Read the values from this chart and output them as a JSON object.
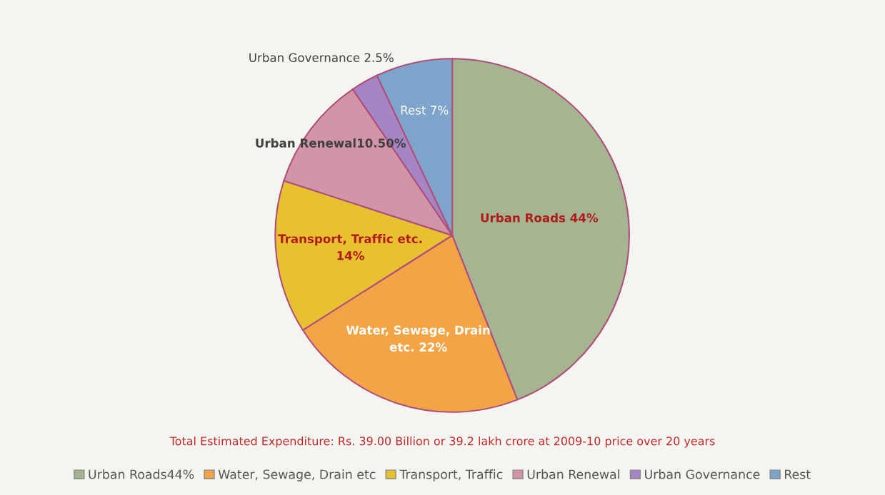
{
  "chart_data": {
    "type": "pie",
    "categories": [
      "Urban Roads44%",
      "Water, Sewage, Drain etc",
      "Transport, Traffic",
      "Urban Renewal",
      "Urban Governance",
      "Rest"
    ],
    "values": [
      44,
      22,
      14,
      10.5,
      2.5,
      7
    ],
    "colors": [
      "#a5b592",
      "#f3a447",
      "#e8c130",
      "#d295a7",
      "#a585c4",
      "#7fa4cc"
    ],
    "value_labels": [
      "Urban Roads 44%",
      "Water, Sewage, Drain\netc. 22%",
      "Transport, Traffic etc.\n14%",
      "Urban Renewal10.50%",
      "Urban Governance 2.5%",
      "Rest 7%"
    ],
    "annotations": [
      "Total Estimated Expenditure: Rs. 39.00 Billion or 39.2 lakh crore at 2009-10 price over 20 years"
    ],
    "legend": "bottom"
  }
}
